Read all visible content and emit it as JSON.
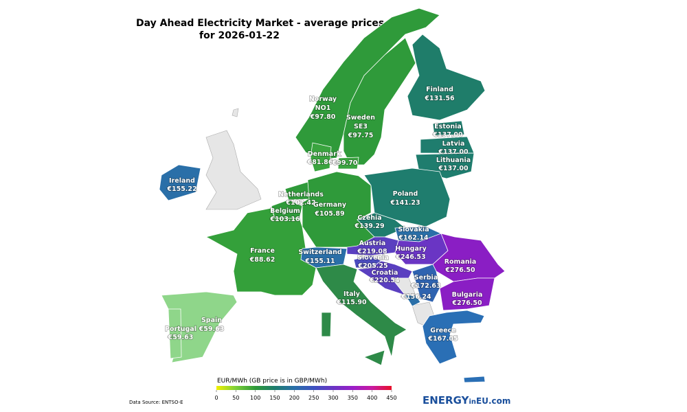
{
  "header": {
    "title": "Day Ahead Electricity Market - average prices",
    "subtitle": "for 2026-01-22"
  },
  "regions": [
    {
      "name": "Norway",
      "area": "NO1",
      "prices": [
        "€97.80"
      ],
      "color": "#2f9a3a"
    },
    {
      "name": "Sweden",
      "area": "SE3",
      "prices": [
        "€97.75"
      ],
      "color": "#2f9a3a"
    },
    {
      "name": "Finland",
      "prices": [
        "€131.56"
      ],
      "color": "#1f7d6a"
    },
    {
      "name": "Estonia",
      "prices": [
        "€137.00"
      ],
      "color": "#1f7d6e"
    },
    {
      "name": "Latvia",
      "prices": [
        "€137.00"
      ],
      "color": "#1f7d6e"
    },
    {
      "name": "Lithuania",
      "prices": [
        "€137.00"
      ],
      "color": "#1f7d6e"
    },
    {
      "name": "Denmark",
      "prices": [
        "€81.86",
        "€99.70"
      ],
      "color": "#3aa43f"
    },
    {
      "name": "Ireland",
      "prices": [
        "€155.22"
      ],
      "color": "#2a6fa8"
    },
    {
      "name": "Netherlands",
      "prices": [
        "€102.42"
      ],
      "color": "#2f9a3a"
    },
    {
      "name": "Belgium",
      "prices": [
        "€103.16"
      ],
      "color": "#2f9a3a"
    },
    {
      "name": "Germany",
      "prices": [
        "€105.89"
      ],
      "color": "#2f9a3a"
    },
    {
      "name": "Poland",
      "prices": [
        "€141.23"
      ],
      "color": "#1f7d6e"
    },
    {
      "name": "Czehia",
      "prices": [
        "€139.29"
      ],
      "color": "#1f7d6e"
    },
    {
      "name": "Slovakia",
      "prices": [
        "€162.14"
      ],
      "color": "#2a6fa8"
    },
    {
      "name": "Austria",
      "prices": [
        "€219.08"
      ],
      "color": "#5a3fc0"
    },
    {
      "name": "Hungary",
      "prices": [
        "€246.53"
      ],
      "color": "#6a35c4"
    },
    {
      "name": "Romania",
      "prices": [
        "€276.50"
      ],
      "color": "#8a1ec4"
    },
    {
      "name": "Switzerland",
      "prices": [
        "€155.11"
      ],
      "color": "#2a6fa8"
    },
    {
      "name": "France",
      "prices": [
        "€88.62"
      ],
      "color": "#34a03a"
    },
    {
      "name": "Slovenia",
      "prices": [
        "€205.25"
      ],
      "color": "#4a4bbd"
    },
    {
      "name": "Croatia",
      "prices": [
        "€220.54"
      ],
      "color": "#5a3fc0"
    },
    {
      "name": "Serbia",
      "prices": [
        "€172.63"
      ],
      "color": "#2f63b0"
    },
    {
      "name": "Bulgaria",
      "prices": [
        "€276.50"
      ],
      "color": "#8a1ec4"
    },
    {
      "prices": [
        "€156.24"
      ],
      "color": "#2a6fa8"
    },
    {
      "name": "Italy",
      "prices": [
        "€115.90"
      ],
      "color": "#2e8a48"
    },
    {
      "name": "Greece",
      "prices": [
        "€167.05"
      ],
      "color": "#2a6fb5"
    },
    {
      "name": "Portugal",
      "prices": [
        "€59.63"
      ],
      "color": "#8fd68a"
    },
    {
      "name": "Spain",
      "prices": [
        "€59.63"
      ],
      "color": "#8fd68a"
    }
  ],
  "colorbar": {
    "label": "EUR/MWh (GB price is in GBP/MWh)",
    "range": [
      0,
      450
    ],
    "ticks": [
      0,
      50,
      100,
      150,
      200,
      250,
      300,
      350,
      400,
      450
    ],
    "colors": [
      "#f2f000",
      "#7ccf3a",
      "#2f9a3a",
      "#1f7d6e",
      "#2a6fa8",
      "#3d52c0",
      "#6a35c4",
      "#9a1ec8",
      "#c81aa0",
      "#e8102a"
    ]
  },
  "footer": {
    "source": "Data Source: ENTSO-E",
    "brand": [
      "ENERGY",
      "in",
      "EU.com"
    ]
  }
}
